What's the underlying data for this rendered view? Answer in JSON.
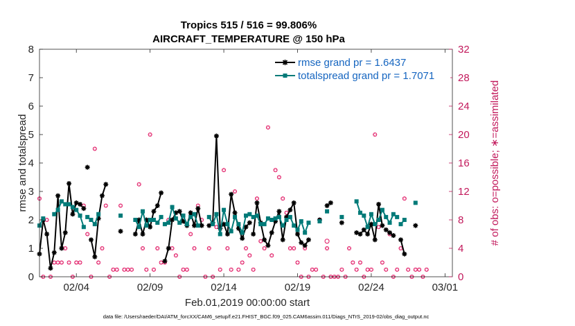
{
  "chart_data": {
    "type": "line",
    "title": "Tropics 515 / 516 = 99.806%",
    "subtitle": "AIRCRAFT_TEMPERATURE @ 150 hPa",
    "xlabel": "Feb.01,2019 00:00:00 start",
    "ylabel": "rmse and totalspread",
    "ylabel_right": "# of obs: o=possible; ∗=assimilated",
    "xlim": [
      0.5,
      28.5
    ],
    "ylim": [
      0,
      8
    ],
    "ylim_right": [
      0,
      32
    ],
    "x_ticks": [
      {
        "value": 3,
        "label": "02/04"
      },
      {
        "value": 8,
        "label": "02/09"
      },
      {
        "value": 13,
        "label": "02/14"
      },
      {
        "value": 18,
        "label": "02/19"
      },
      {
        "value": 23,
        "label": "02/24"
      },
      {
        "value": 28,
        "label": "03/01"
      }
    ],
    "y_ticks": [
      "0",
      "1",
      "2",
      "3",
      "4",
      "5",
      "6",
      "7",
      "8"
    ],
    "y_ticks_right": [
      "0",
      "4",
      "8",
      "12",
      "16",
      "20",
      "24",
      "28",
      "32"
    ],
    "legend": {
      "position": "top-right",
      "entries": [
        "rmse grand pr = 1.6437",
        "totalspread grand pr = 1.7071"
      ]
    },
    "series": [
      {
        "name": "rmse",
        "color": "#000000",
        "points": [
          [
            0.5,
            0.8
          ],
          [
            0.75,
            2.0
          ],
          [
            1.0,
            1.5
          ],
          [
            1.25,
            0.3
          ],
          [
            1.5,
            0.85
          ],
          [
            1.75,
            2.85
          ],
          [
            2.0,
            1.0
          ],
          [
            2.25,
            1.55
          ],
          [
            2.5,
            3.28
          ],
          [
            2.75,
            2.2
          ],
          [
            3.0,
            2.6
          ],
          [
            3.25,
            2.55
          ],
          [
            3.5,
            2.4
          ],
          null,
          [
            3.75,
            3.85
          ],
          null,
          [
            4.0,
            1.3
          ],
          [
            4.25,
            0.7
          ],
          [
            4.5,
            2.05
          ],
          [
            4.75,
            2.85
          ],
          [
            5.0,
            3.25
          ],
          null,
          [
            6.0,
            1.6
          ],
          null,
          [
            7.0,
            1.5
          ],
          [
            7.25,
            2.0
          ],
          [
            7.5,
            1.5
          ],
          [
            7.75,
            2.0
          ],
          [
            8.0,
            1.75
          ],
          [
            8.25,
            2.3
          ],
          [
            8.5,
            2.5
          ],
          [
            8.75,
            2.95
          ],
          null,
          [
            9.0,
            0.55
          ],
          [
            9.25,
            1.0
          ],
          [
            9.5,
            2.0
          ],
          [
            9.75,
            2.25
          ],
          [
            10.0,
            2.3
          ],
          [
            10.25,
            1.95
          ],
          [
            10.5,
            1.8
          ],
          [
            10.75,
            2.25
          ],
          [
            11.0,
            1.8
          ],
          [
            11.25,
            2.4
          ],
          [
            11.5,
            1.8
          ],
          null,
          [
            12.0,
            1.8
          ],
          [
            12.25,
            1.9
          ],
          [
            12.5,
            4.95
          ],
          [
            12.75,
            1.7
          ],
          [
            13.0,
            1.85
          ],
          [
            13.25,
            1.5
          ],
          [
            13.5,
            2.9
          ],
          [
            13.75,
            2.25
          ],
          [
            14.0,
            1.7
          ],
          [
            14.25,
            1.35
          ],
          [
            14.5,
            1.75
          ],
          [
            14.75,
            1.9
          ],
          null,
          [
            15.0,
            1.5
          ],
          [
            15.25,
            2.6
          ],
          [
            15.5,
            1.9
          ],
          [
            15.75,
            1.3
          ],
          [
            16.0,
            1.1
          ],
          [
            16.25,
            1.55
          ],
          [
            16.5,
            1.95
          ],
          [
            16.75,
            2.3
          ],
          [
            17.0,
            1.3
          ],
          [
            17.25,
            2.1
          ],
          [
            17.5,
            2.35
          ],
          [
            17.75,
            2.6
          ],
          [
            18.0,
            1.5
          ],
          [
            18.25,
            1.2
          ],
          [
            18.5,
            1.1
          ],
          [
            18.75,
            1.3
          ],
          null,
          [
            19.5,
            2.0
          ],
          null,
          [
            20.0,
            2.5
          ],
          [
            20.25,
            2.6
          ],
          null,
          [
            21.0,
            1.9
          ],
          null,
          [
            22.0,
            1.55
          ],
          [
            22.25,
            1.5
          ],
          [
            22.5,
            1.65
          ],
          [
            22.75,
            1.5
          ],
          [
            23.0,
            1.85
          ],
          [
            23.25,
            1.3
          ],
          [
            23.5,
            2.55
          ],
          [
            23.75,
            1.8
          ],
          null,
          [
            24.0,
            1.65
          ],
          [
            24.25,
            1.55
          ],
          [
            24.5,
            1.45
          ],
          null,
          [
            25.0,
            1.3
          ],
          [
            25.25,
            0.8
          ],
          null,
          [
            26.0,
            1.8
          ]
        ]
      },
      {
        "name": "totalspread",
        "color": "#007a78",
        "points": [
          [
            0.5,
            1.8
          ],
          [
            0.75,
            2.05
          ],
          null,
          [
            1.5,
            2.2
          ],
          [
            1.75,
            2.35
          ],
          [
            2.0,
            2.65
          ],
          [
            2.25,
            2.55
          ],
          [
            2.5,
            2.55
          ],
          [
            2.75,
            2.45
          ],
          [
            3.0,
            2.35
          ],
          [
            3.25,
            2.15
          ],
          [
            3.5,
            1.75
          ],
          null,
          [
            3.75,
            2.1
          ],
          null,
          [
            4.0,
            2.0
          ],
          [
            4.25,
            1.85
          ],
          [
            4.5,
            2.2
          ],
          null,
          [
            6.0,
            2.15
          ],
          null,
          [
            7.0,
            2.0
          ],
          [
            7.25,
            1.75
          ],
          [
            7.5,
            2.3
          ],
          [
            7.75,
            1.8
          ],
          [
            8.0,
            2.0
          ],
          [
            8.25,
            2.0
          ],
          [
            8.5,
            1.9
          ],
          [
            8.75,
            2.1
          ],
          null,
          [
            9.0,
            1.85
          ],
          [
            9.25,
            1.9
          ],
          [
            9.5,
            2.45
          ],
          [
            9.75,
            2.05
          ],
          [
            10.0,
            1.9
          ],
          [
            10.25,
            2.15
          ],
          [
            10.5,
            1.85
          ],
          [
            10.75,
            2.1
          ],
          [
            11.0,
            2.2
          ],
          [
            11.25,
            1.8
          ],
          null,
          [
            12.0,
            2.1
          ],
          [
            12.25,
            1.85
          ],
          [
            12.5,
            2.2
          ],
          [
            12.75,
            1.5
          ],
          [
            13.0,
            2.35
          ],
          [
            13.25,
            1.85
          ],
          [
            13.5,
            1.6
          ],
          [
            13.75,
            2.1
          ],
          [
            14.0,
            1.85
          ],
          [
            14.25,
            1.55
          ],
          [
            14.5,
            2.15
          ],
          [
            14.75,
            2.2
          ],
          null,
          [
            15.0,
            2.1
          ],
          [
            15.25,
            2.15
          ],
          [
            15.5,
            1.85
          ],
          [
            15.75,
            1.85
          ],
          [
            16.0,
            2.05
          ],
          [
            16.25,
            2.0
          ],
          [
            16.5,
            2.05
          ],
          [
            16.75,
            2.1
          ],
          [
            17.0,
            1.8
          ],
          [
            17.25,
            2.0
          ],
          [
            17.5,
            2.1
          ],
          [
            17.75,
            1.8
          ],
          [
            18.0,
            1.65
          ],
          [
            18.25,
            1.95
          ],
          [
            18.5,
            1.55
          ],
          [
            18.75,
            1.9
          ],
          null,
          [
            19.5,
            1.95
          ],
          null,
          [
            20.0,
            2.3
          ],
          null,
          [
            21.0,
            2.1
          ],
          null,
          [
            22.0,
            2.65
          ],
          [
            22.25,
            2.25
          ],
          [
            22.5,
            2.15
          ],
          [
            22.75,
            1.75
          ],
          [
            23.0,
            2.2
          ],
          [
            23.25,
            1.85
          ],
          [
            23.5,
            2.0
          ],
          [
            23.75,
            2.35
          ],
          [
            24.0,
            2.1
          ],
          [
            24.25,
            1.9
          ],
          [
            24.5,
            2.2
          ],
          [
            24.75,
            2.1
          ],
          null,
          [
            25.0,
            1.85
          ],
          [
            25.25,
            2.0
          ],
          null,
          [
            26.0,
            2.6
          ]
        ]
      }
    ],
    "obs_assimilated": [
      [
        0.5,
        11
      ],
      [
        0.75,
        0
      ],
      [
        1.0,
        8
      ],
      [
        1.25,
        0
      ],
      [
        1.5,
        2
      ],
      [
        1.75,
        2
      ],
      [
        2.0,
        2
      ],
      [
        2.25,
        4
      ],
      [
        2.5,
        2
      ],
      [
        2.75,
        0
      ],
      [
        3.0,
        2
      ],
      [
        3.25,
        2
      ],
      [
        3.5,
        10
      ],
      [
        3.75,
        6
      ],
      [
        4.0,
        0
      ],
      [
        4.25,
        18
      ],
      [
        4.5,
        2
      ],
      [
        4.75,
        4
      ],
      [
        5.0,
        10
      ],
      [
        5.25,
        0
      ],
      [
        5.5,
        1
      ],
      [
        5.75,
        1
      ],
      [
        6.0,
        10
      ],
      [
        6.25,
        1
      ],
      [
        6.5,
        1
      ],
      [
        6.75,
        1
      ],
      [
        7.0,
        8
      ],
      [
        7.25,
        13
      ],
      [
        7.5,
        4
      ],
      [
        7.75,
        1
      ],
      [
        8.0,
        20
      ],
      [
        8.25,
        1
      ],
      [
        8.5,
        4
      ],
      [
        8.75,
        2
      ],
      [
        9.0,
        2
      ],
      [
        9.25,
        8
      ],
      [
        9.5,
        4
      ],
      [
        9.75,
        3
      ],
      [
        10.0,
        0
      ],
      [
        10.25,
        1
      ],
      [
        10.5,
        1
      ],
      [
        10.75,
        6
      ],
      [
        11.0,
        4
      ],
      [
        11.25,
        10
      ],
      [
        11.5,
        8
      ],
      [
        11.75,
        0
      ],
      [
        12.0,
        4
      ],
      [
        12.25,
        0
      ],
      [
        12.5,
        7
      ],
      [
        12.75,
        1
      ],
      [
        13.0,
        15
      ],
      [
        13.25,
        4
      ],
      [
        13.5,
        1
      ],
      [
        13.75,
        12
      ],
      [
        14.0,
        1
      ],
      [
        14.25,
        2
      ],
      [
        14.5,
        4
      ],
      [
        14.75,
        3
      ],
      [
        15.0,
        1
      ],
      [
        15.25,
        11
      ],
      [
        15.5,
        5
      ],
      [
        15.75,
        4
      ],
      [
        16.0,
        21
      ],
      [
        16.25,
        3
      ],
      [
        16.5,
        15
      ],
      [
        16.75,
        14
      ],
      [
        17.0,
        11
      ],
      [
        17.25,
        9
      ],
      [
        17.5,
        4
      ],
      [
        17.75,
        4
      ],
      [
        18.0,
        2
      ],
      [
        18.25,
        0
      ],
      [
        18.5,
        4
      ],
      [
        18.75,
        0
      ],
      [
        19.0,
        1
      ],
      [
        19.25,
        1
      ],
      [
        19.5,
        8
      ],
      [
        19.75,
        0
      ],
      [
        20.0,
        4
      ],
      [
        20.25,
        0
      ],
      [
        20.5,
        0
      ],
      [
        20.75,
        0
      ],
      [
        21.0,
        1
      ],
      [
        21.25,
        0
      ],
      [
        21.5,
        4
      ],
      [
        21.75,
        2
      ],
      [
        22.0,
        1
      ],
      [
        22.25,
        2
      ],
      [
        22.5,
        0
      ],
      [
        22.75,
        1
      ],
      [
        23.0,
        1
      ],
      [
        23.25,
        20
      ],
      [
        23.5,
        7
      ],
      [
        23.75,
        2
      ],
      [
        24.0,
        1
      ],
      [
        24.25,
        6
      ],
      [
        24.5,
        0
      ],
      [
        24.75,
        1
      ],
      [
        25.0,
        4
      ],
      [
        25.25,
        11
      ],
      [
        25.5,
        1
      ],
      [
        25.75,
        0
      ],
      [
        26.0,
        1
      ],
      [
        26.25,
        1
      ],
      [
        26.5,
        0
      ],
      [
        26.75,
        1
      ]
    ],
    "obs_possible": [
      [
        20.0,
        5
      ]
    ]
  },
  "footer": "data file: /Users/raeder/DAI/ATM_forcXX/CAM6_setup/f.e21.FHIST_BGC.f09_025.CAM6assim.011/Diags_NTrS_2019-02/obs_diag_output.nc",
  "colors": {
    "rmse": "#000000",
    "totalspread": "#007a78",
    "obs": "#e0115f",
    "right_axis": "#c2185b",
    "legend_text": "#1565c0"
  }
}
